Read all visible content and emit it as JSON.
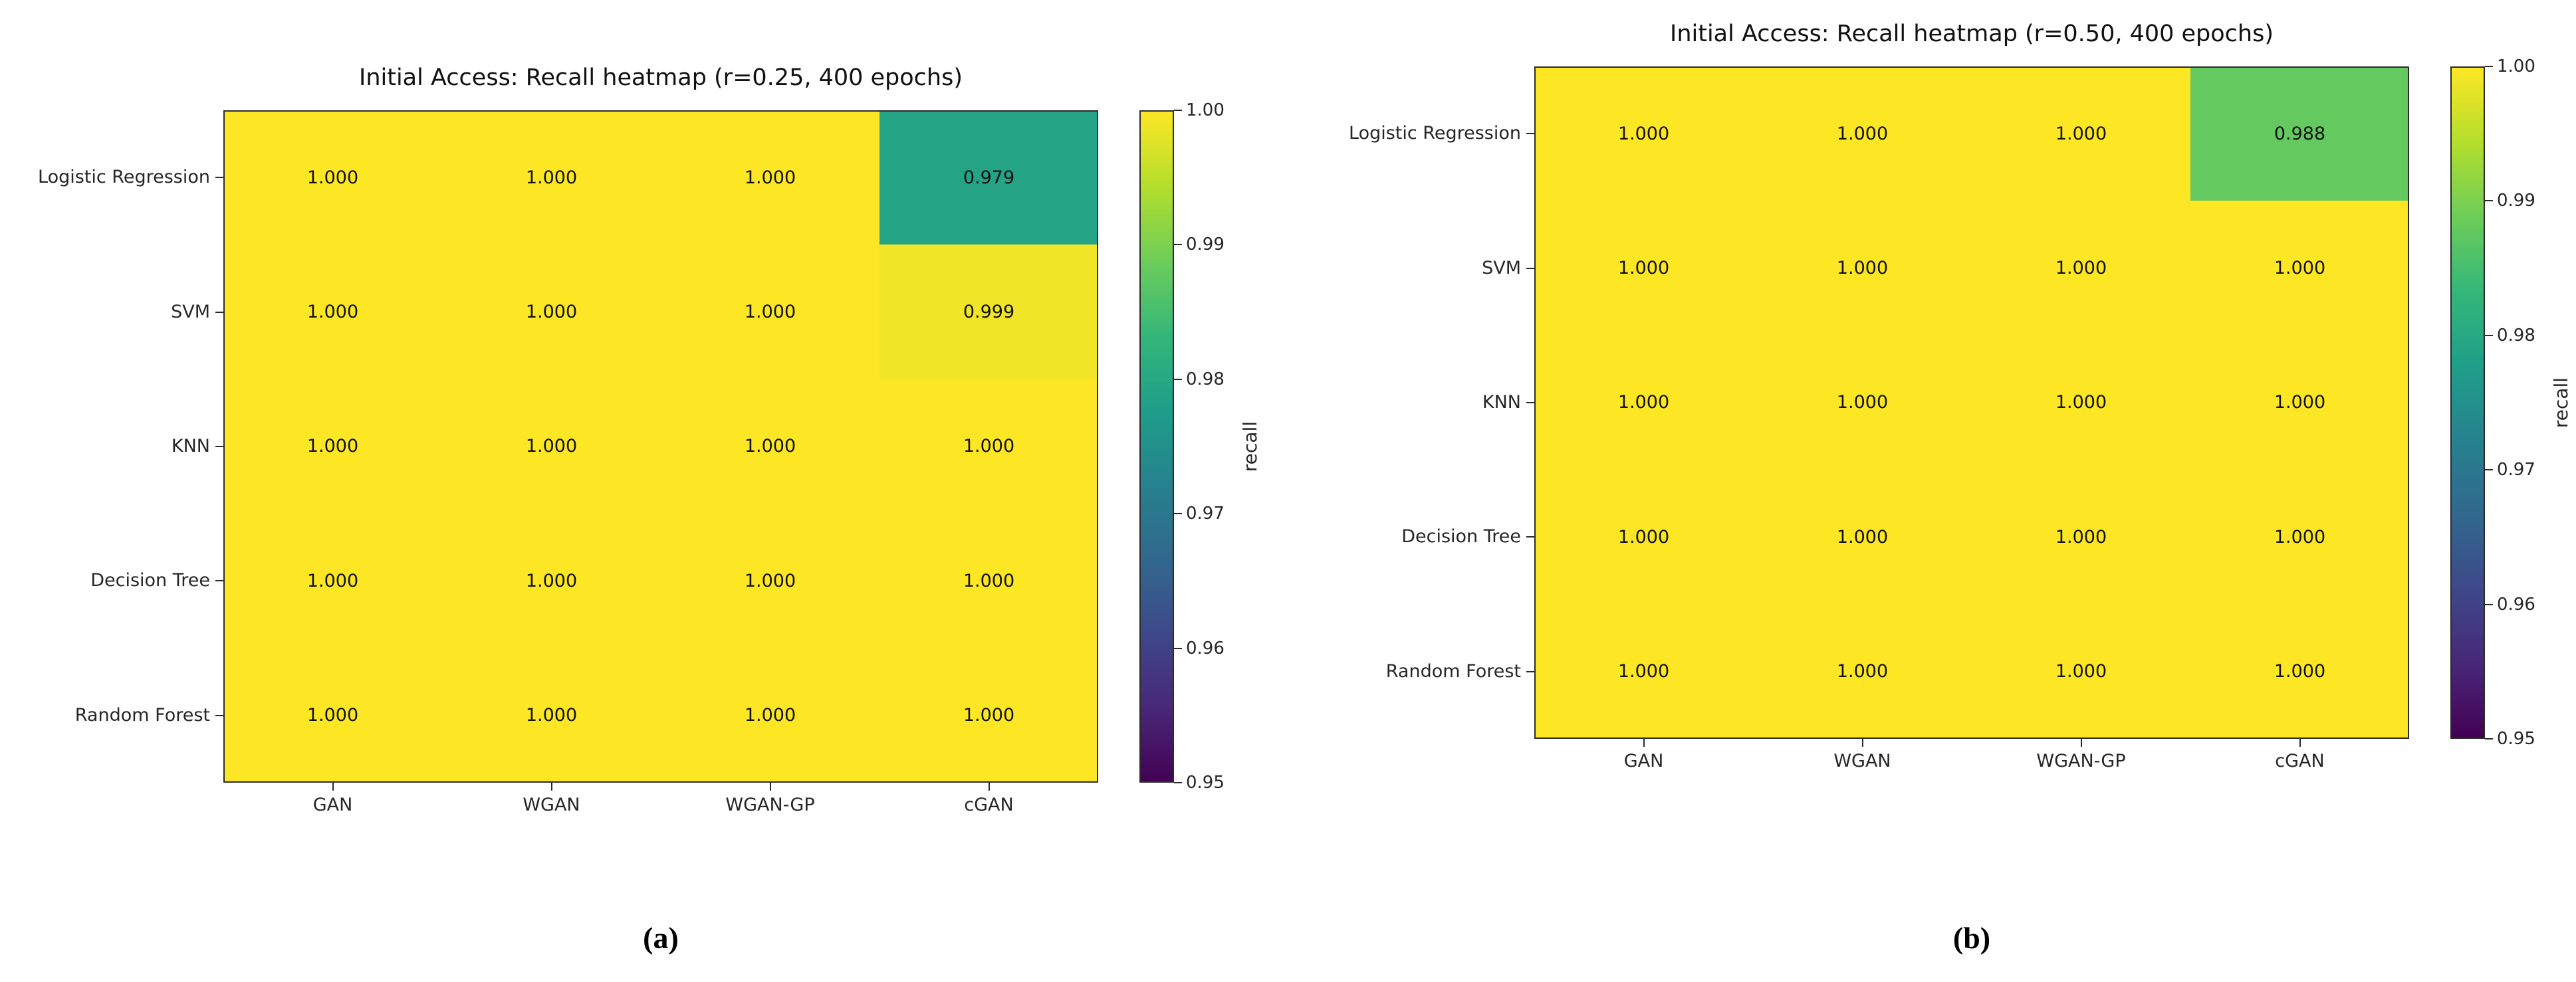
{
  "page": {
    "background": "#ffffff"
  },
  "chart_data": [
    {
      "type": "heatmap",
      "panel": "a",
      "caption": "(a)",
      "title": "Initial Access: Recall heatmap (r=0.25, 400 epochs)",
      "rows": [
        "Logistic Regression",
        "SVM",
        "KNN",
        "Decision Tree",
        "Random Forest"
      ],
      "columns": [
        "GAN",
        "WGAN",
        "WGAN-GP",
        "cGAN"
      ],
      "values": [
        [
          1.0,
          1.0,
          1.0,
          0.979
        ],
        [
          1.0,
          1.0,
          1.0,
          0.999
        ],
        [
          1.0,
          1.0,
          1.0,
          1.0
        ],
        [
          1.0,
          1.0,
          1.0,
          1.0
        ],
        [
          1.0,
          1.0,
          1.0,
          1.0
        ]
      ],
      "value_decimals": 3,
      "colormap": "viridis",
      "vmin": 0.95,
      "vmax": 1.0,
      "colorbar_label": "recall",
      "colorbar_ticks": [
        1.0,
        0.99,
        0.98,
        0.97,
        0.96,
        0.95
      ],
      "tick_decimals": 2,
      "annotation_color": "#111111",
      "legend_position": "right",
      "grid": false
    },
    {
      "type": "heatmap",
      "panel": "b",
      "caption": "(b)",
      "title": "Initial Access: Recall heatmap (r=0.50, 400 epochs)",
      "rows": [
        "Logistic Regression",
        "SVM",
        "KNN",
        "Decision Tree",
        "Random Forest"
      ],
      "columns": [
        "GAN",
        "WGAN",
        "WGAN-GP",
        "cGAN"
      ],
      "values": [
        [
          1.0,
          1.0,
          1.0,
          0.988
        ],
        [
          1.0,
          1.0,
          1.0,
          1.0
        ],
        [
          1.0,
          1.0,
          1.0,
          1.0
        ],
        [
          1.0,
          1.0,
          1.0,
          1.0
        ],
        [
          1.0,
          1.0,
          1.0,
          1.0
        ]
      ],
      "value_decimals": 3,
      "colormap": "viridis",
      "vmin": 0.95,
      "vmax": 1.0,
      "colorbar_label": "recall",
      "colorbar_ticks": [
        1.0,
        0.99,
        0.98,
        0.97,
        0.96,
        0.95
      ],
      "tick_decimals": 2,
      "annotation_color": "#111111",
      "legend_position": "right",
      "grid": false
    }
  ]
}
